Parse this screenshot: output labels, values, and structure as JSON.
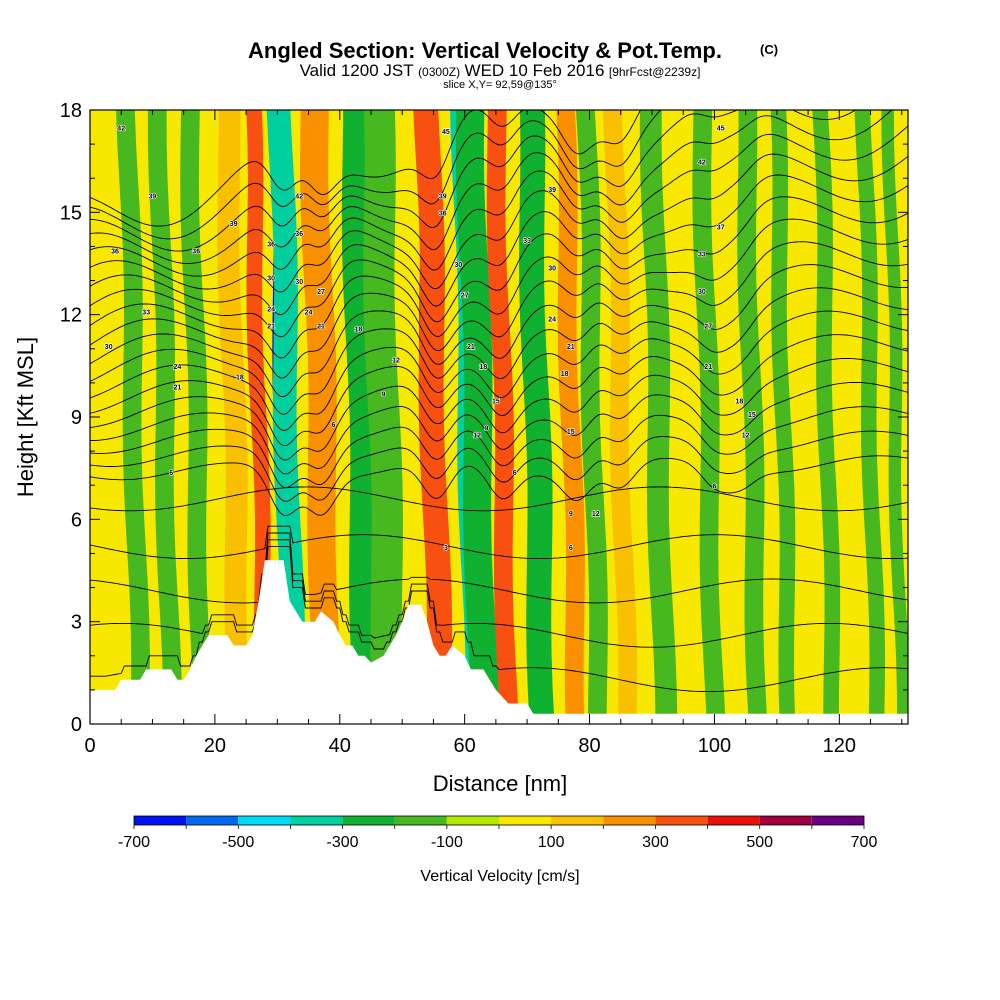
{
  "header": {
    "title_main": "Angled Section: Vertical Velocity & Pot.Temp.",
    "title_unit": "(C)",
    "valid_prefix": "Valid 1200 JST",
    "valid_utc": "(0300Z)",
    "valid_date": "WED 10 Feb 2016",
    "valid_fcst": "[9hrFcst@2239z]",
    "slice": "slice X,Y= 92,59@135°"
  },
  "chart_data": {
    "type": "heatmap",
    "xlabel": "Distance [nm]",
    "ylabel": "Height [Kft MSL]",
    "xlim": [
      0,
      131
    ],
    "ylim": [
      0,
      18
    ],
    "xticks": [
      0,
      20,
      40,
      60,
      80,
      100,
      120
    ],
    "yticks": [
      0,
      3,
      6,
      9,
      12,
      15,
      18
    ],
    "colorbar": {
      "label": "Vertical Velocity [cm/s]",
      "ticks": [
        -700,
        -500,
        -300,
        -100,
        100,
        300,
        500,
        700
      ],
      "bins": [
        -700,
        -600,
        -500,
        -400,
        -300,
        -200,
        -100,
        0,
        100,
        200,
        300,
        400,
        500,
        600,
        700
      ],
      "colors": [
        "#0010f0",
        "#0068f0",
        "#00d8f8",
        "#00d0a0",
        "#10b030",
        "#48b820",
        "#b0e800",
        "#f8e800",
        "#f8c000",
        "#f89000",
        "#f85010",
        "#e81008",
        "#a00040",
        "#6a0080"
      ]
    },
    "terrain": [
      [
        0,
        1.0
      ],
      [
        4,
        1.0
      ],
      [
        5,
        1.3
      ],
      [
        8,
        1.3
      ],
      [
        9,
        1.6
      ],
      [
        13,
        1.6
      ],
      [
        14,
        1.3
      ],
      [
        15,
        1.3
      ],
      [
        16,
        1.6
      ],
      [
        17,
        2.0
      ],
      [
        18,
        2.3
      ],
      [
        19,
        2.6
      ],
      [
        22,
        2.6
      ],
      [
        23,
        2.3
      ],
      [
        25,
        2.3
      ],
      [
        26,
        2.6
      ],
      [
        27,
        3.6
      ],
      [
        28,
        4.8
      ],
      [
        31,
        4.8
      ],
      [
        32,
        3.6
      ],
      [
        34,
        3.0
      ],
      [
        36,
        3.0
      ],
      [
        37,
        3.3
      ],
      [
        39,
        3.0
      ],
      [
        40,
        2.6
      ],
      [
        41,
        2.3
      ],
      [
        42,
        2.3
      ],
      [
        43,
        2.0
      ],
      [
        44,
        2.0
      ],
      [
        45,
        1.8
      ],
      [
        47,
        2.0
      ],
      [
        48,
        2.3
      ],
      [
        49,
        2.6
      ],
      [
        50,
        3.0
      ],
      [
        51,
        3.5
      ],
      [
        53,
        3.5
      ],
      [
        54,
        3.0
      ],
      [
        55,
        2.3
      ],
      [
        56,
        2.0
      ],
      [
        57,
        2.0
      ],
      [
        58,
        2.3
      ],
      [
        60,
        2.0
      ],
      [
        61,
        1.6
      ],
      [
        63,
        1.6
      ],
      [
        64,
        1.3
      ],
      [
        65,
        1.0
      ],
      [
        67,
        0.6
      ],
      [
        70,
        0.6
      ],
      [
        71,
        0.3
      ],
      [
        131,
        0.3
      ]
    ],
    "wave_columns": [
      {
        "x": 7,
        "w": 3,
        "level": -150
      },
      {
        "x": 12,
        "w": 3,
        "level": -180
      },
      {
        "x": 17,
        "w": 3,
        "level": -130
      },
      {
        "x": 23,
        "w": 3.5,
        "level": 170
      },
      {
        "x": 27,
        "w": 2.5,
        "level": 320
      },
      {
        "x": 31,
        "w": 2.6,
        "level": -620
      },
      {
        "x": 31.5,
        "w": 3.8,
        "level": -360
      },
      {
        "x": 36.5,
        "w": 2.8,
        "level": 430
      },
      {
        "x": 37,
        "w": 4.5,
        "level": 250
      },
      {
        "x": 43.5,
        "w": 4.5,
        "level": -220
      },
      {
        "x": 47,
        "w": 5,
        "level": -130
      },
      {
        "x": 54.5,
        "w": 2.5,
        "level": 560
      },
      {
        "x": 55,
        "w": 4,
        "level": 320
      },
      {
        "x": 60.5,
        "w": 3,
        "level": -370
      },
      {
        "x": 62,
        "w": 4.5,
        "level": -220
      },
      {
        "x": 66,
        "w": 3,
        "level": 360
      },
      {
        "x": 71.5,
        "w": 4,
        "level": -230
      },
      {
        "x": 77,
        "w": 3,
        "level": 230
      },
      {
        "x": 80.5,
        "w": 3,
        "level": -170
      },
      {
        "x": 85,
        "w": 3,
        "level": 190
      },
      {
        "x": 91,
        "w": 3.5,
        "level": -150
      },
      {
        "x": 99,
        "w": 3,
        "level": -120
      },
      {
        "x": 106,
        "w": 3,
        "level": -120
      },
      {
        "x": 111,
        "w": 2.5,
        "level": -120
      },
      {
        "x": 118,
        "w": 2.5,
        "level": -110
      },
      {
        "x": 125,
        "w": 2.5,
        "level": -110
      },
      {
        "x": 129,
        "w": 2,
        "level": -110
      }
    ],
    "theta_contours": {
      "base_levels": [
        1.3,
        2.6,
        3.9,
        5.2,
        6.6
      ],
      "upper_start": 7.5,
      "upper_step": 0.55,
      "upper_count": 19
    },
    "contour_labels": [
      {
        "x": 5,
        "y": 17.4,
        "text": "42"
      },
      {
        "x": 10,
        "y": 15.4,
        "text": "39"
      },
      {
        "x": 4,
        "y": 13.8,
        "text": "36"
      },
      {
        "x": 9,
        "y": 12.0,
        "text": "33"
      },
      {
        "x": 3,
        "y": 11.0,
        "text": "30"
      },
      {
        "x": 14,
        "y": 10.4,
        "text": "24"
      },
      {
        "x": 14,
        "y": 9.8,
        "text": "21"
      },
      {
        "x": 17,
        "y": 13.8,
        "text": "36"
      },
      {
        "x": 23,
        "y": 14.6,
        "text": "39"
      },
      {
        "x": 24,
        "y": 10.1,
        "text": "18"
      },
      {
        "x": 13,
        "y": 7.3,
        "text": "6"
      },
      {
        "x": 29,
        "y": 14.0,
        "text": "36"
      },
      {
        "x": 29,
        "y": 13.0,
        "text": "30"
      },
      {
        "x": 29,
        "y": 12.1,
        "text": "24"
      },
      {
        "x": 29,
        "y": 11.6,
        "text": "21"
      },
      {
        "x": 33.5,
        "y": 15.4,
        "text": "42"
      },
      {
        "x": 33.5,
        "y": 14.3,
        "text": "36"
      },
      {
        "x": 33.5,
        "y": 12.9,
        "text": "30"
      },
      {
        "x": 35,
        "y": 12.0,
        "text": "24"
      },
      {
        "x": 37,
        "y": 11.6,
        "text": "21"
      },
      {
        "x": 37,
        "y": 12.6,
        "text": "27"
      },
      {
        "x": 43,
        "y": 11.5,
        "text": "18"
      },
      {
        "x": 49,
        "y": 10.6,
        "text": "12"
      },
      {
        "x": 47,
        "y": 9.6,
        "text": "9"
      },
      {
        "x": 39,
        "y": 8.7,
        "text": "6"
      },
      {
        "x": 57,
        "y": 17.3,
        "text": "45"
      },
      {
        "x": 56.5,
        "y": 15.4,
        "text": "39"
      },
      {
        "x": 56.5,
        "y": 14.9,
        "text": "36"
      },
      {
        "x": 59,
        "y": 13.4,
        "text": "30"
      },
      {
        "x": 60,
        "y": 12.5,
        "text": "27"
      },
      {
        "x": 61,
        "y": 11.0,
        "text": "21"
      },
      {
        "x": 63,
        "y": 10.4,
        "text": "18"
      },
      {
        "x": 65,
        "y": 9.4,
        "text": "15"
      },
      {
        "x": 62,
        "y": 8.4,
        "text": "12"
      },
      {
        "x": 63.5,
        "y": 8.6,
        "text": "9"
      },
      {
        "x": 68,
        "y": 7.3,
        "text": "6"
      },
      {
        "x": 57,
        "y": 5.1,
        "text": "3"
      },
      {
        "x": 70,
        "y": 14.1,
        "text": "33"
      },
      {
        "x": 74,
        "y": 13.3,
        "text": "30"
      },
      {
        "x": 74,
        "y": 11.8,
        "text": "24"
      },
      {
        "x": 77,
        "y": 11.0,
        "text": "21"
      },
      {
        "x": 76,
        "y": 10.2,
        "text": "18"
      },
      {
        "x": 77,
        "y": 8.5,
        "text": "15"
      },
      {
        "x": 77,
        "y": 6.1,
        "text": "9"
      },
      {
        "x": 81,
        "y": 6.1,
        "text": "12"
      },
      {
        "x": 77,
        "y": 5.1,
        "text": "6"
      },
      {
        "x": 74,
        "y": 15.6,
        "text": "39"
      },
      {
        "x": 101,
        "y": 17.4,
        "text": "45"
      },
      {
        "x": 98,
        "y": 16.4,
        "text": "42"
      },
      {
        "x": 101,
        "y": 14.5,
        "text": "37"
      },
      {
        "x": 98,
        "y": 13.7,
        "text": "33"
      },
      {
        "x": 98,
        "y": 12.6,
        "text": "30"
      },
      {
        "x": 99,
        "y": 11.6,
        "text": "27"
      },
      {
        "x": 99,
        "y": 10.4,
        "text": "21"
      },
      {
        "x": 104,
        "y": 9.4,
        "text": "18"
      },
      {
        "x": 106,
        "y": 9.0,
        "text": "15"
      },
      {
        "x": 105,
        "y": 8.4,
        "text": "12"
      },
      {
        "x": 100,
        "y": 6.9,
        "text": "6"
      }
    ]
  }
}
